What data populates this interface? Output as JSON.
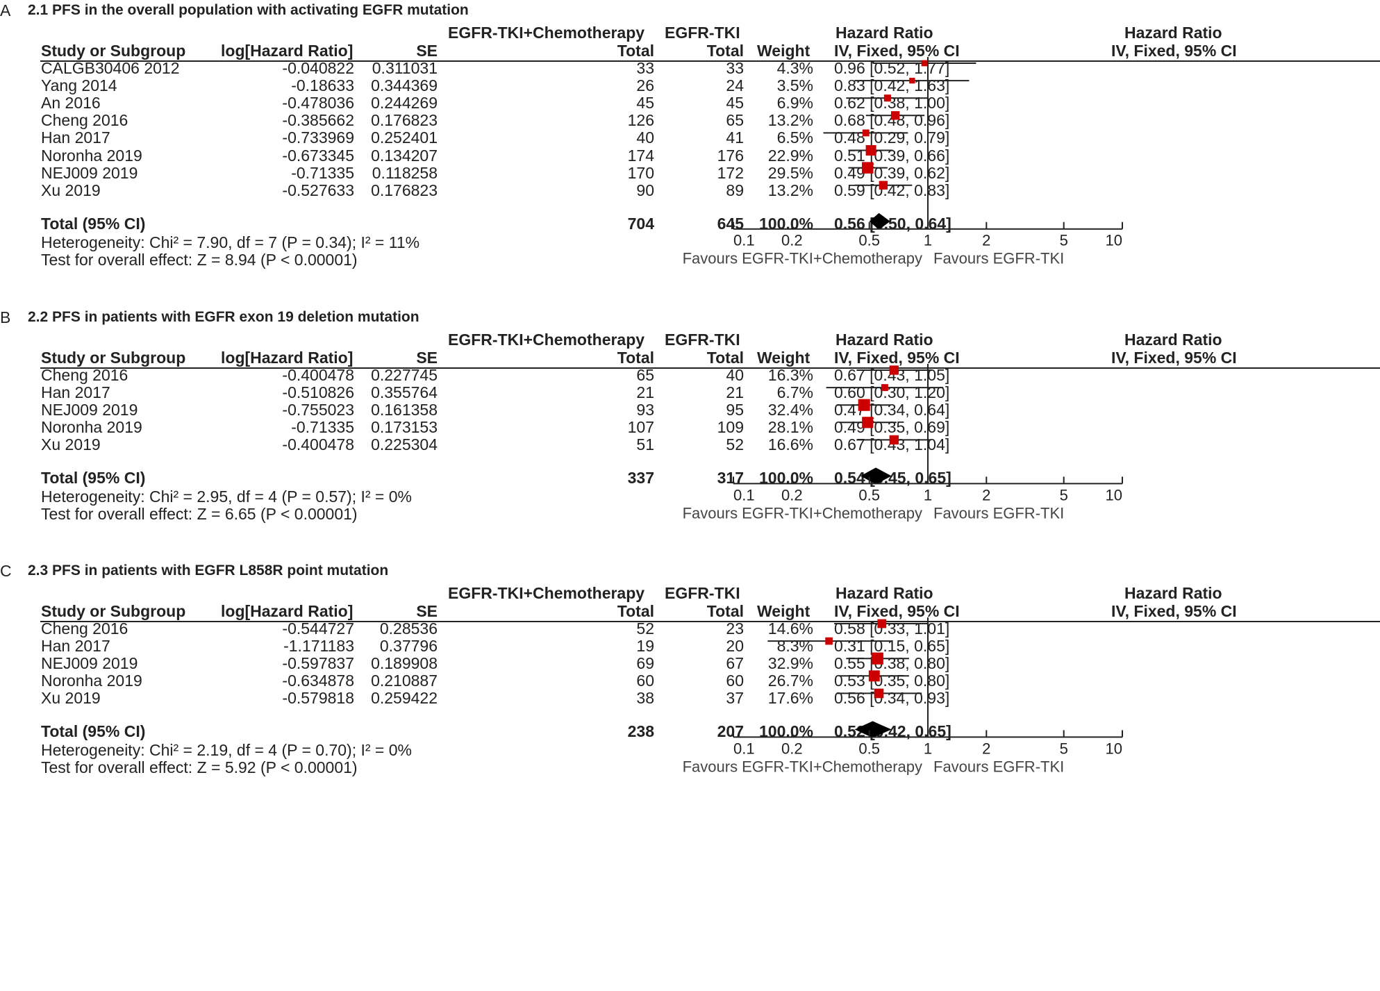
{
  "colors": {
    "marker": "#cc0000",
    "line": "#222222",
    "diamond": "#000000"
  },
  "panels": [
    {
      "letter": "A",
      "title": "2.1 PFS in the overall population with activating EGFR mutation",
      "group_exp": "EGFR-TKI+Chemotherapy",
      "group_ctl": "EGFR-TKI",
      "hr_header": "Hazard Ratio",
      "plot_header": "Hazard Ratio",
      "col_study": "Study or Subgroup",
      "col_loghr": "log[Hazard Ratio]",
      "col_se": "SE",
      "col_total_exp": "Total",
      "col_total_ctl": "Total",
      "col_weight": "Weight",
      "col_ci": "IV, Fixed, 95% CI",
      "plot_ci_header": "IV, Fixed, 95% CI",
      "rows": [
        {
          "study": "CALGB30406 2012",
          "loghr": "-0.040822",
          "se": "0.311031",
          "n1": "33",
          "n2": "33",
          "weight": "4.3%",
          "ci": "0.96 [0.52, 1.77]"
        },
        {
          "study": "Yang 2014",
          "loghr": "-0.18633",
          "se": "0.344369",
          "n1": "26",
          "n2": "24",
          "weight": "3.5%",
          "ci": "0.83 [0.42, 1.63]"
        },
        {
          "study": "An 2016",
          "loghr": "-0.478036",
          "se": "0.244269",
          "n1": "45",
          "n2": "45",
          "weight": "6.9%",
          "ci": "0.62 [0.38, 1.00]"
        },
        {
          "study": "Cheng 2016",
          "loghr": "-0.385662",
          "se": "0.176823",
          "n1": "126",
          "n2": "65",
          "weight": "13.2%",
          "ci": "0.68 [0.48, 0.96]"
        },
        {
          "study": "Han 2017",
          "loghr": "-0.733969",
          "se": "0.252401",
          "n1": "40",
          "n2": "41",
          "weight": "6.5%",
          "ci": "0.48 [0.29, 0.79]"
        },
        {
          "study": "Noronha 2019",
          "loghr": "-0.673345",
          "se": "0.134207",
          "n1": "174",
          "n2": "176",
          "weight": "22.9%",
          "ci": "0.51 [0.39, 0.66]"
        },
        {
          "study": "NEJ009 2019",
          "loghr": "-0.71335",
          "se": "0.118258",
          "n1": "170",
          "n2": "172",
          "weight": "29.5%",
          "ci": "0.49 [0.39, 0.62]"
        },
        {
          "study": "Xu 2019",
          "loghr": "-0.527633",
          "se": "0.176823",
          "n1": "90",
          "n2": "89",
          "weight": "13.2%",
          "ci": "0.59 [0.42, 0.83]"
        }
      ],
      "total": {
        "label": "Total (95% CI)",
        "n1": "704",
        "n2": "645",
        "weight": "100.0%",
        "ci": "0.56 [0.50, 0.64]"
      },
      "heterogeneity": "Heterogeneity: Chi² = 7.90, df = 7 (P = 0.34); I² = 11%",
      "overall": "Test for overall effect: Z = 8.94 (P < 0.00001)",
      "favours_left": "Favours  EGFR-TKI+Chemotherapy",
      "favours_right": "Favours EGFR-TKI"
    },
    {
      "letter": "B",
      "title": "2.2 PFS in patients with EGFR exon 19 deletion mutation",
      "group_exp": "EGFR-TKI+Chemotherapy",
      "group_ctl": "EGFR-TKI",
      "hr_header": "Hazard Ratio",
      "plot_header": "Hazard Ratio",
      "col_study": "Study or Subgroup",
      "col_loghr": "log[Hazard Ratio]",
      "col_se": "SE",
      "col_total_exp": "Total",
      "col_total_ctl": "Total",
      "col_weight": "Weight",
      "col_ci": "IV, Fixed, 95% CI",
      "plot_ci_header": "IV, Fixed, 95% CI",
      "rows": [
        {
          "study": "Cheng 2016",
          "loghr": "-0.400478",
          "se": "0.227745",
          "n1": "65",
          "n2": "40",
          "weight": "16.3%",
          "ci": "0.67 [0.43, 1.05]"
        },
        {
          "study": "Han 2017",
          "loghr": "-0.510826",
          "se": "0.355764",
          "n1": "21",
          "n2": "21",
          "weight": "6.7%",
          "ci": "0.60 [0.30, 1.20]"
        },
        {
          "study": "NEJ009 2019",
          "loghr": "-0.755023",
          "se": "0.161358",
          "n1": "93",
          "n2": "95",
          "weight": "32.4%",
          "ci": "0.47 [0.34, 0.64]"
        },
        {
          "study": "Noronha 2019",
          "loghr": "-0.71335",
          "se": "0.173153",
          "n1": "107",
          "n2": "109",
          "weight": "28.1%",
          "ci": "0.49 [0.35, 0.69]"
        },
        {
          "study": "Xu 2019",
          "loghr": "-0.400478",
          "se": "0.225304",
          "n1": "51",
          "n2": "52",
          "weight": "16.6%",
          "ci": "0.67 [0.43, 1.04]"
        }
      ],
      "total": {
        "label": "Total (95% CI)",
        "n1": "337",
        "n2": "317",
        "weight": "100.0%",
        "ci": "0.54 [0.45, 0.65]"
      },
      "heterogeneity": "Heterogeneity: Chi² = 2.95, df = 4 (P = 0.57); I² = 0%",
      "overall": "Test for overall effect: Z = 6.65 (P < 0.00001)",
      "favours_left": "Favours  EGFR-TKI+Chemotherapy",
      "favours_right": "Favours EGFR-TKI"
    },
    {
      "letter": "C",
      "title": "2.3 PFS in patients with EGFR L858R point mutation",
      "group_exp": "EGFR-TKI+Chemotherapy",
      "group_ctl": "EGFR-TKI",
      "hr_header": "Hazard Ratio",
      "plot_header": "Hazard Ratio",
      "col_study": "Study or Subgroup",
      "col_loghr": "log[Hazard Ratio]",
      "col_se": "SE",
      "col_total_exp": "Total",
      "col_total_ctl": "Total",
      "col_weight": "Weight",
      "col_ci": "IV, Fixed, 95% CI",
      "plot_ci_header": "IV, Fixed, 95% CI",
      "rows": [
        {
          "study": "Cheng 2016",
          "loghr": "-0.544727",
          "se": "0.28536",
          "n1": "52",
          "n2": "23",
          "weight": "14.6%",
          "ci": "0.58 [0.33, 1.01]"
        },
        {
          "study": "Han 2017",
          "loghr": "-1.171183",
          "se": "0.37796",
          "n1": "19",
          "n2": "20",
          "weight": "8.3%",
          "ci": "0.31 [0.15, 0.65]"
        },
        {
          "study": "NEJ009 2019",
          "loghr": "-0.597837",
          "se": "0.189908",
          "n1": "69",
          "n2": "67",
          "weight": "32.9%",
          "ci": "0.55 [0.38, 0.80]"
        },
        {
          "study": "Noronha 2019",
          "loghr": "-0.634878",
          "se": "0.210887",
          "n1": "60",
          "n2": "60",
          "weight": "26.7%",
          "ci": "0.53 [0.35, 0.80]"
        },
        {
          "study": "Xu 2019",
          "loghr": "-0.579818",
          "se": "0.259422",
          "n1": "38",
          "n2": "37",
          "weight": "17.6%",
          "ci": "0.56 [0.34, 0.93]"
        }
      ],
      "total": {
        "label": "Total (95% CI)",
        "n1": "238",
        "n2": "207",
        "weight": "100.0%",
        "ci": "0.52 [0.42, 0.65]"
      },
      "heterogeneity": "Heterogeneity: Chi² = 2.19, df = 4 (P = 0.70); I² = 0%",
      "overall": "Test for overall effect: Z = 5.92 (P < 0.00001)",
      "favours_left": "Favours  EGFR-TKI+Chemotherapy",
      "favours_right": "Favours EGFR-TKI"
    }
  ],
  "chart_data": [
    {
      "type": "forest",
      "title": "2.1 PFS in the overall population with activating EGFR mutation",
      "xscale": "log",
      "xlim": [
        0.1,
        10
      ],
      "ticks": [
        0.1,
        0.2,
        0.5,
        1,
        2,
        5,
        10
      ],
      "tick_labels": [
        "0.1",
        "0.2",
        "0.5",
        "1",
        "2",
        "5",
        "10"
      ],
      "studies": [
        {
          "name": "CALGB30406 2012",
          "hr": 0.96,
          "lo": 0.52,
          "hi": 1.77,
          "weight": 4.3
        },
        {
          "name": "Yang 2014",
          "hr": 0.83,
          "lo": 0.42,
          "hi": 1.63,
          "weight": 3.5
        },
        {
          "name": "An 2016",
          "hr": 0.62,
          "lo": 0.38,
          "hi": 1.0,
          "weight": 6.9
        },
        {
          "name": "Cheng 2016",
          "hr": 0.68,
          "lo": 0.48,
          "hi": 0.96,
          "weight": 13.2
        },
        {
          "name": "Han 2017",
          "hr": 0.48,
          "lo": 0.29,
          "hi": 0.79,
          "weight": 6.5
        },
        {
          "name": "Noronha 2019",
          "hr": 0.51,
          "lo": 0.39,
          "hi": 0.66,
          "weight": 22.9
        },
        {
          "name": "NEJ009 2019",
          "hr": 0.49,
          "lo": 0.39,
          "hi": 0.62,
          "weight": 29.5
        },
        {
          "name": "Xu 2019",
          "hr": 0.59,
          "lo": 0.42,
          "hi": 0.83,
          "weight": 13.2
        }
      ],
      "pooled": {
        "hr": 0.56,
        "lo": 0.5,
        "hi": 0.64
      }
    },
    {
      "type": "forest",
      "title": "2.2 PFS in patients with EGFR exon 19 deletion mutation",
      "xscale": "log",
      "xlim": [
        0.1,
        10
      ],
      "ticks": [
        0.1,
        0.2,
        0.5,
        1,
        2,
        5,
        10
      ],
      "tick_labels": [
        "0.1",
        "0.2",
        "0.5",
        "1",
        "2",
        "5",
        "10"
      ],
      "studies": [
        {
          "name": "Cheng 2016",
          "hr": 0.67,
          "lo": 0.43,
          "hi": 1.05,
          "weight": 16.3
        },
        {
          "name": "Han 2017",
          "hr": 0.6,
          "lo": 0.3,
          "hi": 1.2,
          "weight": 6.7
        },
        {
          "name": "NEJ009 2019",
          "hr": 0.47,
          "lo": 0.34,
          "hi": 0.64,
          "weight": 32.4
        },
        {
          "name": "Noronha 2019",
          "hr": 0.49,
          "lo": 0.35,
          "hi": 0.69,
          "weight": 28.1
        },
        {
          "name": "Xu 2019",
          "hr": 0.67,
          "lo": 0.43,
          "hi": 1.04,
          "weight": 16.6
        }
      ],
      "pooled": {
        "hr": 0.54,
        "lo": 0.45,
        "hi": 0.65
      }
    },
    {
      "type": "forest",
      "title": "2.3 PFS in patients with EGFR L858R point mutation",
      "xscale": "log",
      "xlim": [
        0.1,
        10
      ],
      "ticks": [
        0.1,
        0.2,
        0.5,
        1,
        2,
        5,
        10
      ],
      "tick_labels": [
        "0.1",
        "0.2",
        "0.5",
        "1",
        "2",
        "5",
        "10"
      ],
      "studies": [
        {
          "name": "Cheng 2016",
          "hr": 0.58,
          "lo": 0.33,
          "hi": 1.01,
          "weight": 14.6
        },
        {
          "name": "Han 2017",
          "hr": 0.31,
          "lo": 0.15,
          "hi": 0.65,
          "weight": 8.3
        },
        {
          "name": "NEJ009 2019",
          "hr": 0.55,
          "lo": 0.38,
          "hi": 0.8,
          "weight": 32.9
        },
        {
          "name": "Noronha 2019",
          "hr": 0.53,
          "lo": 0.35,
          "hi": 0.8,
          "weight": 26.7
        },
        {
          "name": "Xu 2019",
          "hr": 0.56,
          "lo": 0.34,
          "hi": 0.93,
          "weight": 17.6
        }
      ],
      "pooled": {
        "hr": 0.52,
        "lo": 0.42,
        "hi": 0.65
      }
    }
  ]
}
